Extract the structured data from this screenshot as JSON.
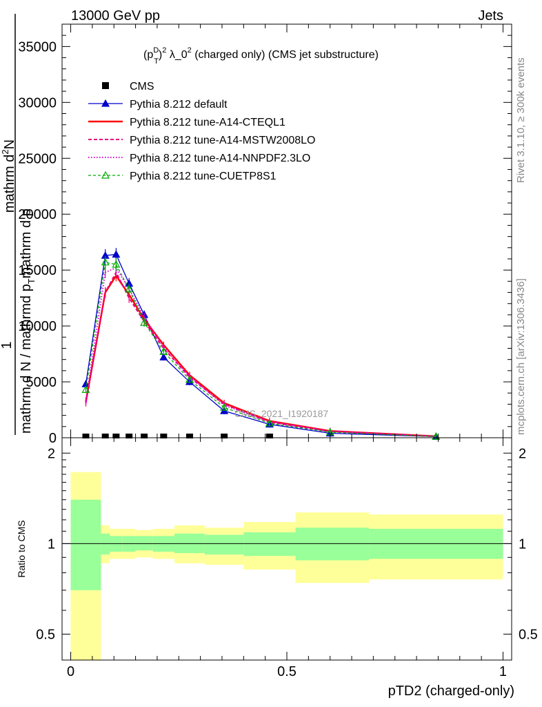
{
  "header": {
    "left": "13000 GeV pp",
    "right": "Jets"
  },
  "side": {
    "rivet": "Rivet 3.1.10, ≥ 300k events",
    "mcplots": "mcplots.cern.ch [arXiv:1306.3436]"
  },
  "watermark": "CMS_2021_I1920187",
  "colors": {
    "cms": "#000000",
    "default": "#0000cc",
    "cteql1": "#ff0000",
    "mstw": "#e6007e",
    "nnpdf": "#d400d4",
    "cuetp8s1": "#00aa00",
    "band_outer": "#ffff99",
    "band_inner": "#99ff99"
  },
  "chart_data": [
    {
      "type": "line",
      "panel": "main",
      "title": "(p_T^D)^2 λ_0^2 (charged only) (CMS jet substructure)",
      "title_parts": {
        "p": "(p",
        "sup1": "D",
        "sub1": "T",
        "mid": ")",
        "sup2": "2",
        "lam": " λ_0",
        "sup3": "2",
        "rest": " (charged only) (CMS jet substructure)"
      },
      "xlabel": "pTD2 (charged-only)",
      "ylabel_numerator": "1",
      "ylabel_denominator": "mathrm d N / mathrmd p_Tmathrm d p_Tmathrm d lambda",
      "ylabel_top": "mathrm d^2N",
      "ylabel_parts": {
        "one": "1",
        "den": "mathrm d N / mathrmd p",
        "den_sub": "T",
        "den_rest": "mathrm d p",
        "num": "mathrm d",
        "num_sup": "2",
        "num_rest": "N"
      },
      "xlim": [
        -0.02,
        1.02
      ],
      "ylim": [
        0,
        37000
      ],
      "yticks": [
        0,
        5000,
        10000,
        15000,
        20000,
        25000,
        30000,
        35000
      ],
      "ytick_labels": [
        "0",
        "5000",
        "10000",
        "15000",
        "20000",
        "25000",
        "30000",
        "35000"
      ],
      "legend_location": "top-left",
      "series": [
        {
          "name": "CMS",
          "key": "cms",
          "style": "square-marker",
          "x": [
            0.035,
            0.08,
            0.105,
            0.135,
            0.17,
            0.215,
            0.275,
            0.355,
            0.46
          ],
          "y": [
            0,
            0,
            0,
            0,
            0,
            0,
            0,
            0,
            0
          ]
        },
        {
          "name": "Pythia 8.212 default",
          "key": "default",
          "style": "solid-triangle",
          "x": [
            0.035,
            0.08,
            0.105,
            0.135,
            0.17,
            0.215,
            0.275,
            0.355,
            0.46,
            0.6,
            0.845
          ],
          "y": [
            4800,
            16300,
            16400,
            13800,
            11000,
            7200,
            5000,
            2400,
            1200,
            400,
            100
          ]
        },
        {
          "name": "Pythia 8.212 tune-A14-CTEQL1",
          "key": "cteql1",
          "style": "solid-thick",
          "x": [
            0.035,
            0.08,
            0.105,
            0.135,
            0.17,
            0.215,
            0.275,
            0.355,
            0.46,
            0.6,
            0.845
          ],
          "y": [
            3200,
            13000,
            14500,
            12800,
            10600,
            8300,
            5600,
            3100,
            1500,
            600,
            130
          ]
        },
        {
          "name": "Pythia 8.212 tune-A14-MSTW2008LO",
          "key": "mstw",
          "style": "dashed",
          "x": [
            0.035,
            0.08,
            0.105,
            0.135,
            0.17,
            0.215,
            0.275,
            0.355,
            0.46,
            0.6,
            0.845
          ],
          "y": [
            3100,
            13000,
            14800,
            12500,
            10400,
            8000,
            5400,
            3000,
            1400,
            550,
            120
          ]
        },
        {
          "name": "Pythia 8.212 tune-A14-NNPDF2.3LO",
          "key": "nnpdf",
          "style": "dotted",
          "x": [
            0.035,
            0.08,
            0.105,
            0.135,
            0.17,
            0.215,
            0.275,
            0.355,
            0.46,
            0.6,
            0.845
          ],
          "y": [
            3300,
            14800,
            15200,
            13300,
            10800,
            8100,
            5500,
            2900,
            1450,
            580,
            125
          ]
        },
        {
          "name": "Pythia 8.212 tune-CUETP8S1",
          "key": "cuetp8s1",
          "style": "dashed-open-triangle",
          "x": [
            0.035,
            0.08,
            0.105,
            0.135,
            0.17,
            0.215,
            0.275,
            0.355,
            0.46,
            0.6,
            0.845
          ],
          "y": [
            4300,
            15700,
            15500,
            13300,
            10300,
            7700,
            5200,
            2700,
            1300,
            500,
            110
          ]
        }
      ]
    },
    {
      "type": "area",
      "panel": "ratio",
      "ylabel": "Ratio to CMS",
      "xlim": [
        -0.02,
        1.02
      ],
      "ylim": [
        0.41,
        2.25
      ],
      "yscale": "log",
      "yticks": [
        0.5,
        1,
        2
      ],
      "ytick_labels": [
        "0.5",
        "1",
        "2"
      ],
      "xticks": [
        0,
        0.5,
        1
      ],
      "xtick_labels": [
        "0",
        "0.5",
        "1"
      ],
      "reference_line": 1,
      "bins": [
        {
          "lo": 0.0,
          "hi": 0.07,
          "inner": [
            0.7,
            1.4
          ],
          "outer": [
            0.41,
            1.73
          ]
        },
        {
          "lo": 0.07,
          "hi": 0.09,
          "inner": [
            0.92,
            1.08
          ],
          "outer": [
            0.86,
            1.15
          ]
        },
        {
          "lo": 0.09,
          "hi": 0.12,
          "inner": [
            0.94,
            1.06
          ],
          "outer": [
            0.89,
            1.12
          ]
        },
        {
          "lo": 0.12,
          "hi": 0.15,
          "inner": [
            0.94,
            1.06
          ],
          "outer": [
            0.89,
            1.12
          ]
        },
        {
          "lo": 0.15,
          "hi": 0.19,
          "inner": [
            0.95,
            1.06
          ],
          "outer": [
            0.9,
            1.11
          ]
        },
        {
          "lo": 0.19,
          "hi": 0.24,
          "inner": [
            0.94,
            1.06
          ],
          "outer": [
            0.89,
            1.12
          ]
        },
        {
          "lo": 0.24,
          "hi": 0.31,
          "inner": [
            0.93,
            1.08
          ],
          "outer": [
            0.86,
            1.15
          ]
        },
        {
          "lo": 0.31,
          "hi": 0.4,
          "inner": [
            0.92,
            1.07
          ],
          "outer": [
            0.85,
            1.13
          ]
        },
        {
          "lo": 0.4,
          "hi": 0.52,
          "inner": [
            0.91,
            1.09
          ],
          "outer": [
            0.82,
            1.18
          ]
        },
        {
          "lo": 0.52,
          "hi": 0.69,
          "inner": [
            0.88,
            1.13
          ],
          "outer": [
            0.74,
            1.27
          ]
        },
        {
          "lo": 0.69,
          "hi": 1.0,
          "inner": [
            0.89,
            1.12
          ],
          "outer": [
            0.76,
            1.25
          ]
        }
      ]
    }
  ]
}
